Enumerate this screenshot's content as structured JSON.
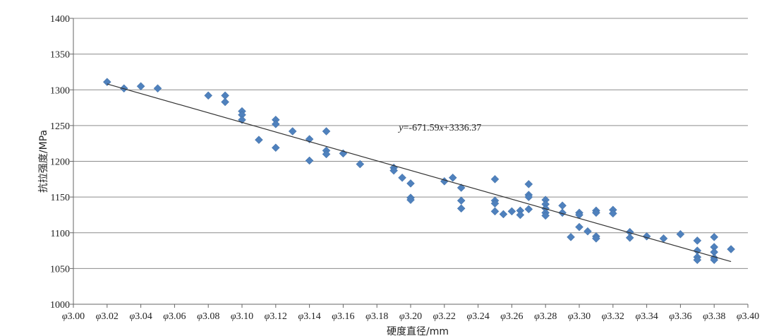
{
  "chart_data": {
    "type": "scatter",
    "xlabel": "硬度直径/mm",
    "ylabel": "抗拉强度/MPa",
    "xlim": [
      3.0,
      3.4
    ],
    "ylim": [
      1000,
      1400
    ],
    "x_ticks": [
      3.0,
      3.02,
      3.04,
      3.06,
      3.08,
      3.1,
      3.12,
      3.14,
      3.16,
      3.18,
      3.2,
      3.22,
      3.24,
      3.26,
      3.28,
      3.3,
      3.32,
      3.34,
      3.36,
      3.38,
      3.4
    ],
    "x_tick_prefix": "φ",
    "y_ticks": [
      1000,
      1050,
      1100,
      1150,
      1200,
      1250,
      1300,
      1350,
      1400
    ],
    "grid": "horizontal",
    "marker": "diamond",
    "marker_color": "#4f81bd",
    "trendline": {
      "slope": -671.59,
      "intercept": 3336.37,
      "x_range": [
        3.02,
        3.39
      ],
      "equation_text": "y=-671.59x+3336.37",
      "color": "#333333"
    },
    "points": [
      [
        3.02,
        1311
      ],
      [
        3.03,
        1302
      ],
      [
        3.04,
        1305
      ],
      [
        3.05,
        1302
      ],
      [
        3.08,
        1292
      ],
      [
        3.09,
        1292
      ],
      [
        3.09,
        1283
      ],
      [
        3.1,
        1270
      ],
      [
        3.1,
        1265
      ],
      [
        3.1,
        1258
      ],
      [
        3.11,
        1230
      ],
      [
        3.12,
        1258
      ],
      [
        3.12,
        1252
      ],
      [
        3.12,
        1219
      ],
      [
        3.13,
        1242
      ],
      [
        3.14,
        1231
      ],
      [
        3.14,
        1201
      ],
      [
        3.15,
        1242
      ],
      [
        3.15,
        1215
      ],
      [
        3.15,
        1210
      ],
      [
        3.16,
        1211
      ],
      [
        3.17,
        1196
      ],
      [
        3.19,
        1191
      ],
      [
        3.19,
        1187
      ],
      [
        3.195,
        1177
      ],
      [
        3.2,
        1169
      ],
      [
        3.2,
        1149
      ],
      [
        3.2,
        1146
      ],
      [
        3.22,
        1172
      ],
      [
        3.225,
        1177
      ],
      [
        3.23,
        1163
      ],
      [
        3.23,
        1145
      ],
      [
        3.23,
        1134
      ],
      [
        3.25,
        1175
      ],
      [
        3.25,
        1145
      ],
      [
        3.25,
        1141
      ],
      [
        3.25,
        1130
      ],
      [
        3.255,
        1126
      ],
      [
        3.26,
        1130
      ],
      [
        3.265,
        1131
      ],
      [
        3.265,
        1125
      ],
      [
        3.27,
        1168
      ],
      [
        3.27,
        1153
      ],
      [
        3.27,
        1150
      ],
      [
        3.27,
        1133
      ],
      [
        3.28,
        1146
      ],
      [
        3.28,
        1140
      ],
      [
        3.28,
        1134
      ],
      [
        3.28,
        1128
      ],
      [
        3.28,
        1124
      ],
      [
        3.29,
        1138
      ],
      [
        3.29,
        1128
      ],
      [
        3.295,
        1094
      ],
      [
        3.3,
        1128
      ],
      [
        3.3,
        1125
      ],
      [
        3.3,
        1108
      ],
      [
        3.305,
        1102
      ],
      [
        3.31,
        1131
      ],
      [
        3.31,
        1128
      ],
      [
        3.31,
        1095
      ],
      [
        3.31,
        1092
      ],
      [
        3.32,
        1132
      ],
      [
        3.32,
        1127
      ],
      [
        3.33,
        1101
      ],
      [
        3.33,
        1093
      ],
      [
        3.34,
        1095
      ],
      [
        3.35,
        1092
      ],
      [
        3.36,
        1098
      ],
      [
        3.37,
        1089
      ],
      [
        3.37,
        1075
      ],
      [
        3.37,
        1066
      ],
      [
        3.37,
        1062
      ],
      [
        3.38,
        1094
      ],
      [
        3.38,
        1080
      ],
      [
        3.38,
        1073
      ],
      [
        3.38,
        1065
      ],
      [
        3.38,
        1062
      ],
      [
        3.39,
        1077
      ]
    ]
  }
}
